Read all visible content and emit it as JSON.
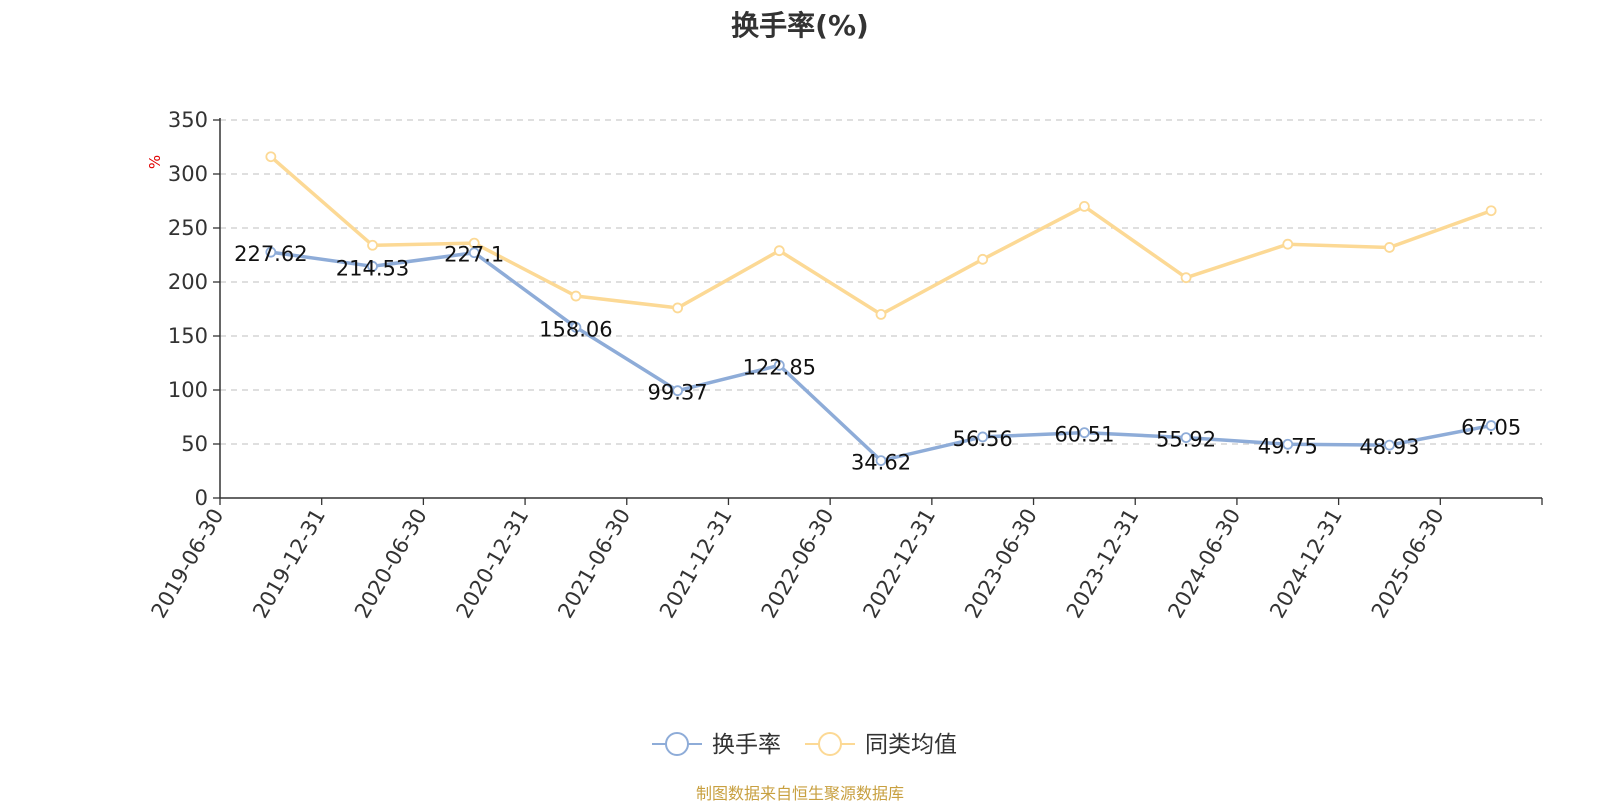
{
  "chart_data": {
    "type": "line",
    "title": "换手率(%)",
    "ylabel": "%",
    "xlabel": "",
    "categories": [
      "2019-06-30",
      "2019-12-31",
      "2020-06-30",
      "2020-12-31",
      "2021-06-30",
      "2021-12-31",
      "2022-06-30",
      "2022-12-31",
      "2023-06-30",
      "2023-12-31",
      "2024-06-30",
      "2024-12-31",
      "2025-06-30"
    ],
    "series": [
      {
        "name": "换手率",
        "color": "#8eacd8",
        "values": [
          227.62,
          214.53,
          227.1,
          158.06,
          99.37,
          122.85,
          34.62,
          56.56,
          60.51,
          55.92,
          49.75,
          48.93,
          67.05
        ],
        "labels": [
          "227.62",
          "214.53",
          "227.1",
          "158.06",
          "99.37",
          "122.85",
          "34.62",
          "56.56",
          "60.51",
          "55.92",
          "49.75",
          "48.93",
          "67.05"
        ]
      },
      {
        "name": "同类均值",
        "color": "#fcd995",
        "values": [
          316,
          234,
          236,
          187,
          176,
          229,
          170,
          221,
          270,
          204,
          235,
          232,
          266
        ]
      }
    ],
    "yticks": [
      "0",
      "50",
      "100",
      "150",
      "200",
      "250",
      "300",
      "350"
    ],
    "ylim": [
      0,
      350
    ],
    "grid": true,
    "legend_position": "bottom-center"
  },
  "source_note": "制图数据来自恒生聚源数据库",
  "colors": {
    "axis": "#333333",
    "grid": "#cccccc",
    "unit_label": "#e00000"
  }
}
